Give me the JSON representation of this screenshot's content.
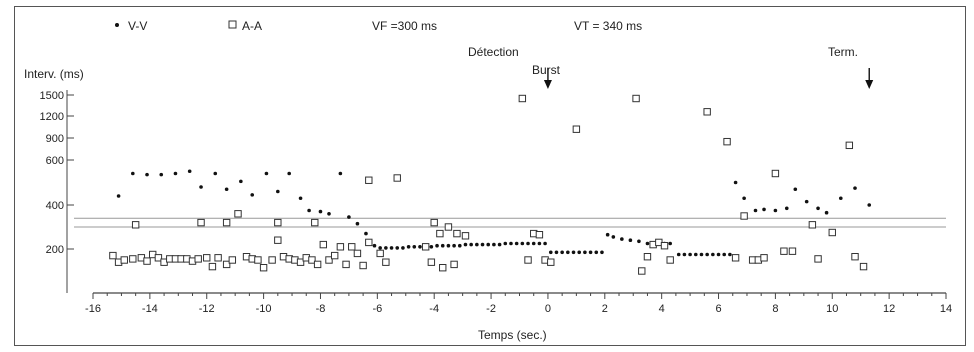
{
  "legend": {
    "vv_label": "V-V",
    "aa_label": "A-A",
    "vf_label": "VF =300 ms",
    "vt_label": "VT = 340 ms"
  },
  "annotations": {
    "detection": "Détection",
    "burst": "Burst",
    "term": "Term."
  },
  "chart_data": {
    "type": "scatter",
    "title": "",
    "xlabel": "Temps (sec.)",
    "ylabel": "Interv. (ms)",
    "xlim": [
      -16,
      14
    ],
    "x_ticks": [
      -16,
      -14,
      -12,
      -10,
      -8,
      -6,
      -4,
      -2,
      0,
      2,
      4,
      6,
      8,
      10,
      12,
      14
    ],
    "y_ticks": [
      1500,
      1200,
      900,
      600,
      400,
      200
    ],
    "y_scale": "nonlinear (compressed above 400 ms)",
    "reference_lines": [
      {
        "name": "VT",
        "y": 340
      },
      {
        "name": "VF",
        "y": 300
      }
    ],
    "legend_position": "top",
    "series": [
      {
        "name": "V-V",
        "marker": "dot",
        "points": [
          [
            -15.1,
            440
          ],
          [
            -14.6,
            540
          ],
          [
            -14.1,
            535
          ],
          [
            -13.6,
            535
          ],
          [
            -13.1,
            540
          ],
          [
            -12.6,
            550
          ],
          [
            -12.2,
            480
          ],
          [
            -11.7,
            540
          ],
          [
            -11.3,
            470
          ],
          [
            -10.8,
            505
          ],
          [
            -10.4,
            445
          ],
          [
            -9.9,
            540
          ],
          [
            -9.5,
            460
          ],
          [
            -9.1,
            540
          ],
          [
            -8.7,
            430
          ],
          [
            -8.4,
            375
          ],
          [
            -8.0,
            370
          ],
          [
            -7.7,
            360
          ],
          [
            -7.3,
            540
          ],
          [
            -7.0,
            345
          ],
          [
            -6.7,
            315
          ],
          [
            -6.4,
            270
          ],
          [
            -6.1,
            215
          ],
          [
            -5.9,
            205
          ],
          [
            -5.7,
            205
          ],
          [
            -5.5,
            205
          ],
          [
            -5.3,
            205
          ],
          [
            -5.1,
            205
          ],
          [
            -4.9,
            210
          ],
          [
            -4.7,
            210
          ],
          [
            -4.5,
            210
          ],
          [
            -4.3,
            210
          ],
          [
            -4.1,
            210
          ],
          [
            -3.9,
            215
          ],
          [
            -3.7,
            215
          ],
          [
            -3.5,
            215
          ],
          [
            -3.3,
            215
          ],
          [
            -3.1,
            215
          ],
          [
            -2.9,
            220
          ],
          [
            -2.7,
            220
          ],
          [
            -2.5,
            220
          ],
          [
            -2.3,
            220
          ],
          [
            -2.1,
            220
          ],
          [
            -1.9,
            220
          ],
          [
            -1.7,
            220
          ],
          [
            -1.5,
            225
          ],
          [
            -1.3,
            225
          ],
          [
            -1.1,
            225
          ],
          [
            -0.9,
            225
          ],
          [
            -0.7,
            225
          ],
          [
            -0.5,
            225
          ],
          [
            -0.3,
            225
          ],
          [
            -0.1,
            225
          ],
          [
            0.1,
            185
          ],
          [
            0.3,
            185
          ],
          [
            0.5,
            185
          ],
          [
            0.7,
            185
          ],
          [
            0.9,
            185
          ],
          [
            1.1,
            185
          ],
          [
            1.3,
            185
          ],
          [
            1.5,
            185
          ],
          [
            1.7,
            185
          ],
          [
            1.9,
            185
          ],
          [
            2.1,
            265
          ],
          [
            2.3,
            255
          ],
          [
            2.6,
            245
          ],
          [
            2.9,
            240
          ],
          [
            3.2,
            235
          ],
          [
            3.5,
            225
          ],
          [
            3.7,
            225
          ],
          [
            3.9,
            230
          ],
          [
            4.1,
            225
          ],
          [
            4.3,
            225
          ],
          [
            4.6,
            175
          ],
          [
            4.8,
            175
          ],
          [
            5.0,
            175
          ],
          [
            5.2,
            175
          ],
          [
            5.4,
            175
          ],
          [
            5.6,
            175
          ],
          [
            5.8,
            175
          ],
          [
            6.0,
            175
          ],
          [
            6.2,
            175
          ],
          [
            6.4,
            175
          ],
          [
            6.6,
            500
          ],
          [
            6.9,
            430
          ],
          [
            7.3,
            375
          ],
          [
            7.6,
            380
          ],
          [
            8.0,
            375
          ],
          [
            8.4,
            385
          ],
          [
            8.7,
            470
          ],
          [
            9.1,
            415
          ],
          [
            9.5,
            385
          ],
          [
            9.8,
            365
          ],
          [
            10.3,
            430
          ],
          [
            10.8,
            475
          ],
          [
            11.3,
            400
          ]
        ]
      },
      {
        "name": "A-A",
        "marker": "open-square",
        "points": [
          [
            -15.3,
            170
          ],
          [
            -15.1,
            140
          ],
          [
            -14.9,
            150
          ],
          [
            -14.6,
            155
          ],
          [
            -14.3,
            160
          ],
          [
            -14.1,
            145
          ],
          [
            -13.9,
            175
          ],
          [
            -13.7,
            160
          ],
          [
            -13.5,
            140
          ],
          [
            -13.3,
            155
          ],
          [
            -13.1,
            155
          ],
          [
            -12.9,
            155
          ],
          [
            -12.7,
            155
          ],
          [
            -12.5,
            145
          ],
          [
            -12.3,
            155
          ],
          [
            -12.0,
            160
          ],
          [
            -11.8,
            120
          ],
          [
            -11.6,
            160
          ],
          [
            -11.3,
            130
          ],
          [
            -11.1,
            150
          ],
          [
            -10.6,
            165
          ],
          [
            -10.4,
            155
          ],
          [
            -10.2,
            150
          ],
          [
            -10.0,
            115
          ],
          [
            -9.7,
            150
          ],
          [
            -9.5,
            240
          ],
          [
            -9.3,
            165
          ],
          [
            -9.1,
            155
          ],
          [
            -8.9,
            150
          ],
          [
            -8.7,
            140
          ],
          [
            -8.5,
            160
          ],
          [
            -8.3,
            150
          ],
          [
            -8.1,
            130
          ],
          [
            -7.9,
            220
          ],
          [
            -7.7,
            150
          ],
          [
            -7.5,
            170
          ],
          [
            -7.3,
            210
          ],
          [
            -7.1,
            130
          ],
          [
            -6.9,
            210
          ],
          [
            -6.7,
            180
          ],
          [
            -6.5,
            125
          ],
          [
            -6.3,
            230
          ],
          [
            -5.9,
            180
          ],
          [
            -5.7,
            140
          ],
          [
            -5.3,
            520
          ],
          [
            -4.3,
            210
          ],
          [
            -4.0,
            320
          ],
          [
            -3.8,
            270
          ],
          [
            -3.5,
            300
          ],
          [
            -3.2,
            270
          ],
          [
            -4.1,
            140
          ],
          [
            -3.7,
            115
          ],
          [
            -3.3,
            130
          ],
          [
            -2.9,
            260
          ],
          [
            -0.9,
            1450
          ],
          [
            -0.7,
            150
          ],
          [
            -0.5,
            270
          ],
          [
            -0.3,
            265
          ],
          [
            -0.1,
            150
          ],
          [
            0.1,
            140
          ],
          [
            1.0,
            1020
          ],
          [
            3.1,
            1450
          ],
          [
            3.3,
            100
          ],
          [
            3.5,
            165
          ],
          [
            3.7,
            220
          ],
          [
            3.9,
            230
          ],
          [
            4.1,
            215
          ],
          [
            4.3,
            150
          ],
          [
            5.6,
            1260
          ],
          [
            6.3,
            850
          ],
          [
            6.6,
            160
          ],
          [
            6.9,
            350
          ],
          [
            7.2,
            150
          ],
          [
            7.4,
            150
          ],
          [
            7.6,
            160
          ],
          [
            8.0,
            540
          ],
          [
            8.3,
            190
          ],
          [
            8.6,
            190
          ],
          [
            9.3,
            310
          ],
          [
            9.5,
            155
          ],
          [
            10.0,
            275
          ],
          [
            10.6,
            800
          ],
          [
            10.8,
            165
          ],
          [
            11.1,
            120
          ],
          [
            -12.2,
            320
          ],
          [
            -11.3,
            320
          ],
          [
            -10.9,
            360
          ],
          [
            -9.5,
            320
          ],
          [
            -8.2,
            320
          ],
          [
            -6.3,
            510
          ],
          [
            -14.5,
            310
          ]
        ]
      }
    ]
  }
}
